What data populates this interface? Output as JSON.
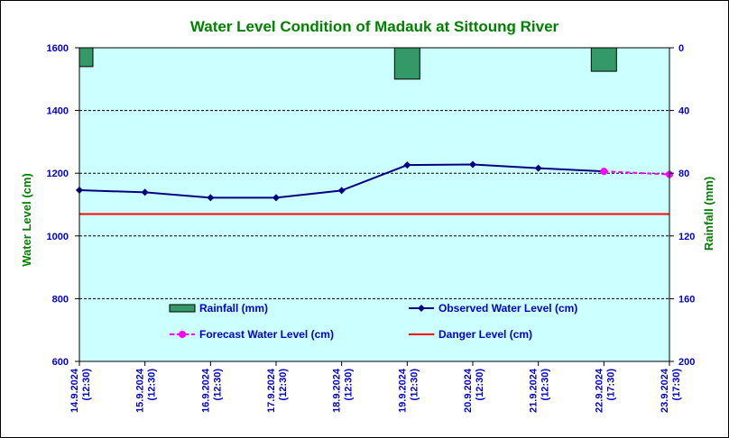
{
  "chart_data": {
    "type": "line",
    "title": "Water Level Condition of Madauk at Sittoung River",
    "ylabel": "Water Level (cm)",
    "y2label": "Rainfall (mm)",
    "ylim": [
      600,
      1600
    ],
    "yticks": [
      600,
      800,
      1000,
      1200,
      1400,
      1600
    ],
    "y2lim": [
      0,
      200
    ],
    "y2ticks": [
      0,
      40,
      80,
      120,
      160,
      200
    ],
    "y2_inverted": true,
    "grid": "horizontal-dashed",
    "categories": [
      {
        "date": "14.9.2024",
        "time": "(12:30)"
      },
      {
        "date": "15.9.2024",
        "time": "(12:30)"
      },
      {
        "date": "16.9.2024",
        "time": "(12:30)"
      },
      {
        "date": "17.9.2024",
        "time": "(12:30)"
      },
      {
        "date": "18.9.2024",
        "time": "(12:30)"
      },
      {
        "date": "19.9.2024",
        "time": "(12:30)"
      },
      {
        "date": "20.9.2024",
        "time": "(12:30)"
      },
      {
        "date": "21.9.2024",
        "time": "(12:30)"
      },
      {
        "date": "22.9.2024",
        "time": "(17:30)"
      },
      {
        "date": "23.9.2024",
        "time": "(17:30)"
      }
    ],
    "series": [
      {
        "name": "Rainfall (mm)",
        "kind": "bar",
        "axis": "right",
        "color": "#339966",
        "values": [
          12,
          null,
          null,
          null,
          null,
          20,
          null,
          null,
          15,
          null
        ]
      },
      {
        "name": "Observed Water Level (cm)",
        "kind": "line",
        "axis": "left",
        "color": "#000080",
        "values": [
          1146,
          1139,
          1122,
          1122,
          1145,
          1226,
          1228,
          1216,
          1206,
          null
        ]
      },
      {
        "name": "Forecast Water Level (cm)",
        "kind": "dashed-line",
        "axis": "left",
        "color": "#ff00ff",
        "values": [
          null,
          null,
          null,
          null,
          null,
          null,
          null,
          null,
          1206,
          1196
        ]
      },
      {
        "name": "Danger Level (cm)",
        "kind": "hline",
        "axis": "left",
        "color": "#ff0000",
        "value": 1070
      }
    ],
    "legend": [
      {
        "label": "Rainfall (mm)",
        "kind": "bar"
      },
      {
        "label": "Observed Water Level (cm)",
        "kind": "line"
      },
      {
        "label": "Forecast Water Level (cm)",
        "kind": "dashed-line"
      },
      {
        "label": "Danger Level (cm)",
        "kind": "hline"
      }
    ],
    "legend_position": "inside-lower",
    "plot_background": "#ccffff"
  }
}
